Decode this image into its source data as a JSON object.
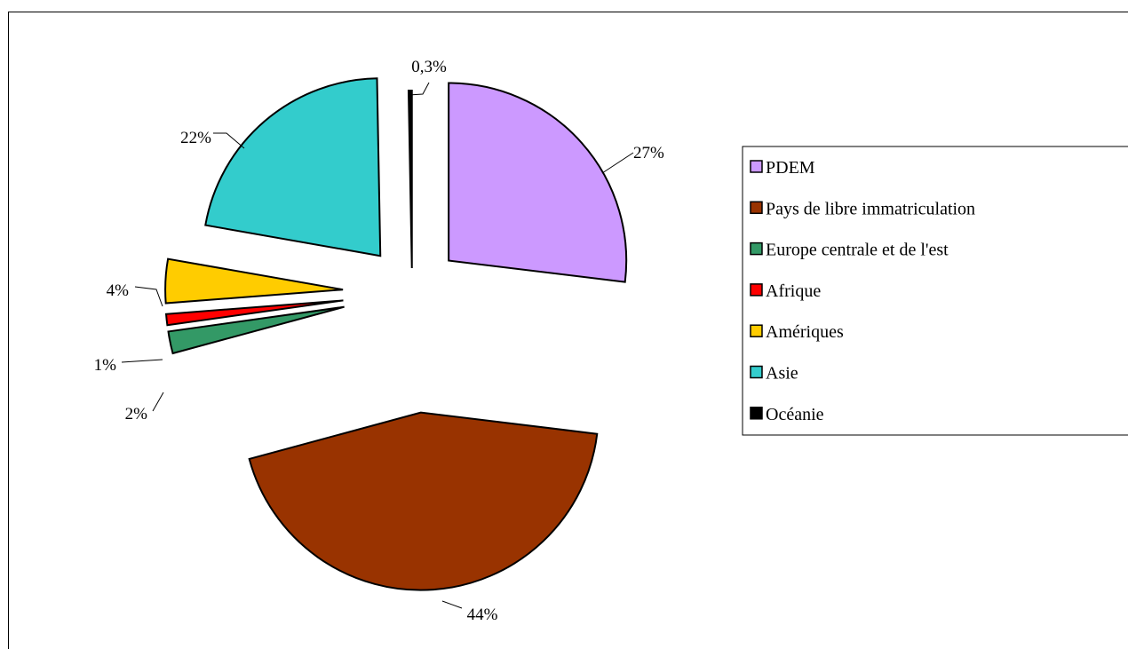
{
  "chart_data": {
    "type": "pie",
    "exploded": true,
    "start_angle_deg": 0,
    "direction": "clockwise",
    "legend_position": "right",
    "slices": [
      {
        "name": "PDEM",
        "value": 27,
        "label": "27%",
        "color": "#cc99ff"
      },
      {
        "name": "Pays de libre immatriculation",
        "value": 44,
        "label": "44%",
        "color": "#993300"
      },
      {
        "name": "Europe centrale et de l'est",
        "value": 2,
        "label": "2%",
        "color": "#339966"
      },
      {
        "name": "Afrique",
        "value": 1,
        "label": "1%",
        "color": "#ff0000"
      },
      {
        "name": "Amériques",
        "value": 4,
        "label": "4%",
        "color": "#ffcc00"
      },
      {
        "name": "Asie",
        "value": 22,
        "label": "22%",
        "color": "#33cccc"
      },
      {
        "name": "Océanie",
        "value": 0.3,
        "label": "0,3%",
        "color": "#000000"
      }
    ]
  }
}
